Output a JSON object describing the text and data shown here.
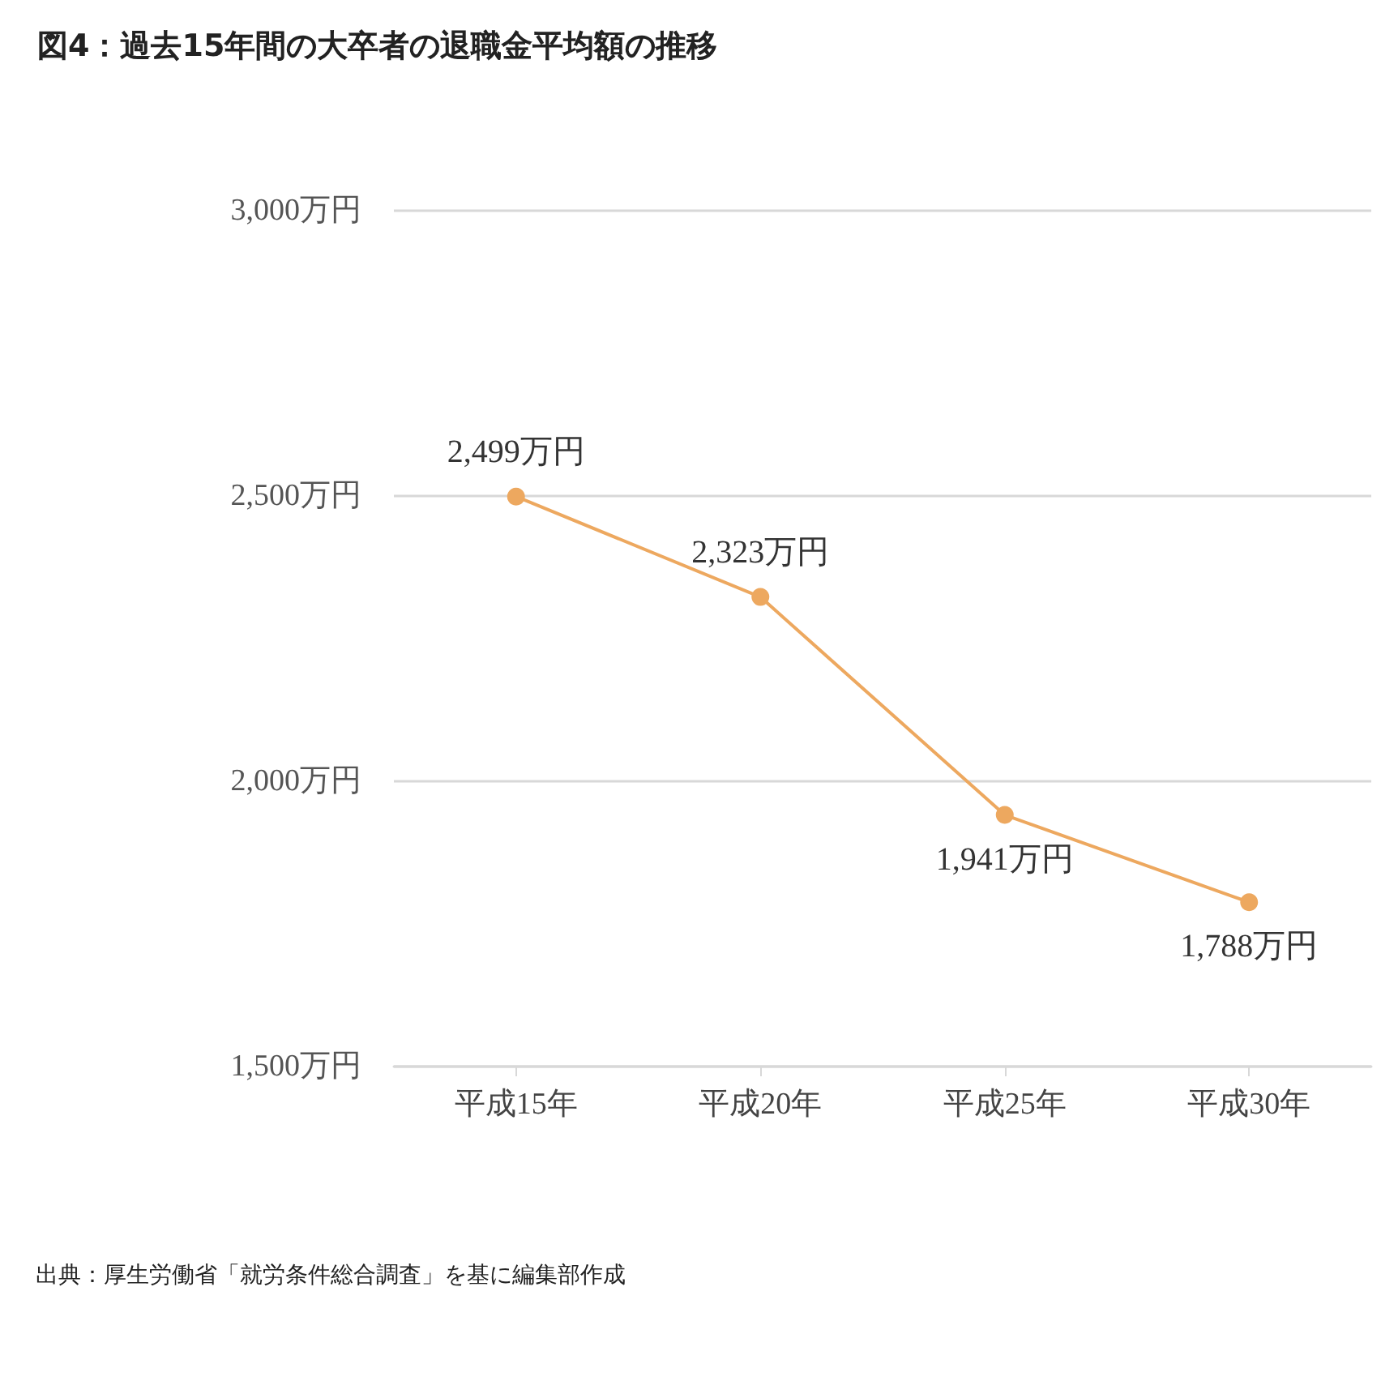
{
  "chart_data": {
    "type": "line",
    "title": "図4：過去15年間の大卒者の退職金平均額の推移",
    "categories": [
      "平成15年",
      "平成20年",
      "平成25年",
      "平成30年"
    ],
    "series": [
      {
        "color": "#eda85f",
        "values": [
          2499,
          2323,
          1941,
          1788
        ],
        "value_labels": [
          "2,499万円",
          "2,323万円",
          "1,941万円",
          "1,788万円"
        ]
      }
    ],
    "ylim": [
      1500,
      3000
    ],
    "yticks": [
      {
        "value": 1500,
        "label": "1,500万円"
      },
      {
        "value": 2000,
        "label": "2,000万円"
      },
      {
        "value": 2500,
        "label": "2,500万円"
      },
      {
        "value": 3000,
        "label": "3,000万円"
      }
    ],
    "grid": "y",
    "marker": "circle",
    "line_style": "solid",
    "annotations": [
      "出典：厚生労働省「就労条件総合調査」を基に編集部作成"
    ]
  }
}
